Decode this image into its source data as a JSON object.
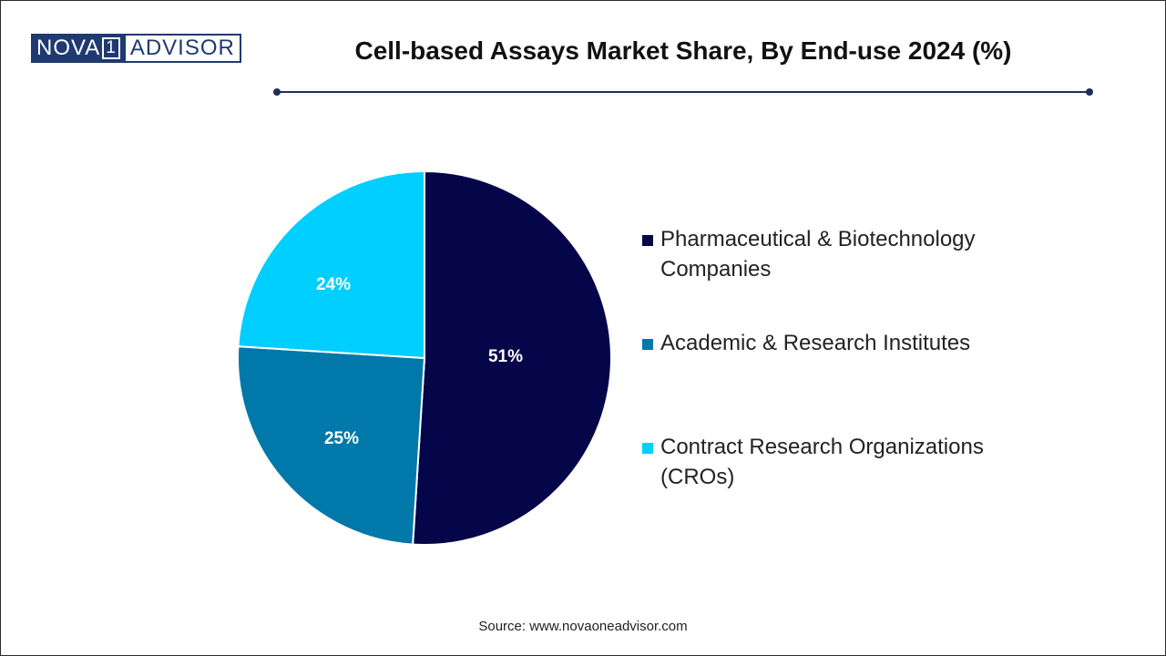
{
  "brand": {
    "left": "NOVA",
    "number": "1",
    "right": "ADVISOR"
  },
  "colors": {
    "brand": "#1f3a70",
    "rule": "#1f2f5a",
    "pharma": "#05054a",
    "academic": "#0078aa",
    "cro": "#00cfff"
  },
  "source": "Source: www.novaoneadvisor.com",
  "chart_data": {
    "type": "pie",
    "title": "Cell-based Assays Market Share, By End-use 2024 (%)",
    "legend_position": "right",
    "slices": [
      {
        "label": "Pharmaceutical & Biotechnology Companies",
        "value": 51,
        "display": "51%",
        "color": "#05054a"
      },
      {
        "label": "Academic & Research Institutes",
        "value": 25,
        "display": "25%",
        "color": "#0078aa"
      },
      {
        "label": "Contract Research Organizations (CROs)",
        "value": 24,
        "display": "24%",
        "color": "#00cfff"
      }
    ]
  }
}
